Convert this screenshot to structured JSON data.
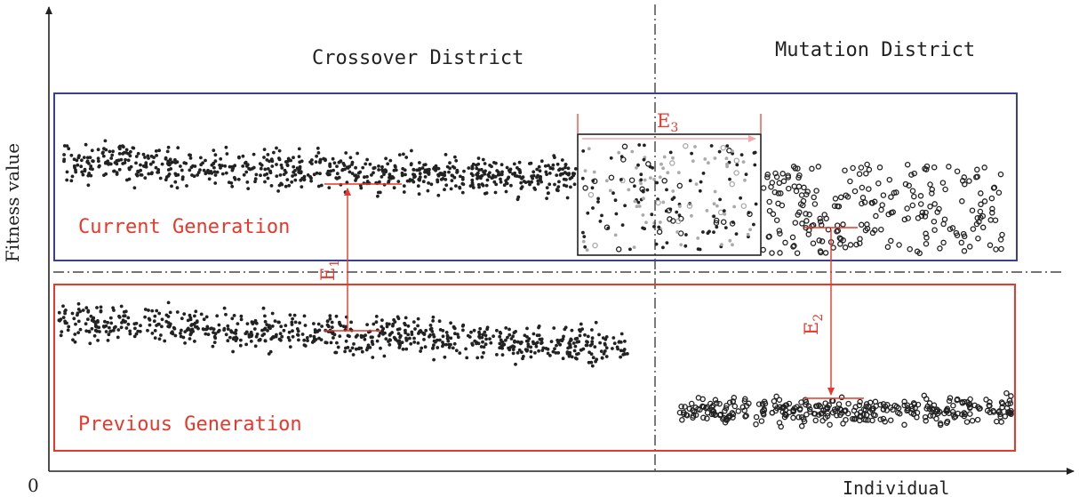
{
  "axes": {
    "y_label": "Fitness value",
    "x_label": "Individual",
    "origin_label": "0"
  },
  "districts": {
    "crossover": "Crossover District",
    "mutation": "Mutation District"
  },
  "generations": {
    "current": "Current Generation",
    "previous": "Previous Generation"
  },
  "markers": {
    "e1": {
      "letter": "E",
      "sub": "1"
    },
    "e2": {
      "letter": "E",
      "sub": "2"
    },
    "e3": {
      "letter": "E",
      "sub": "3"
    }
  },
  "colors": {
    "current_box": "#3b3f8f",
    "previous_box": "#e8372b",
    "annotation": "#e8372b",
    "e3_arrow": "#f0a8a8",
    "dots": "#222222",
    "grey_dots": "#aaaaaa"
  }
}
